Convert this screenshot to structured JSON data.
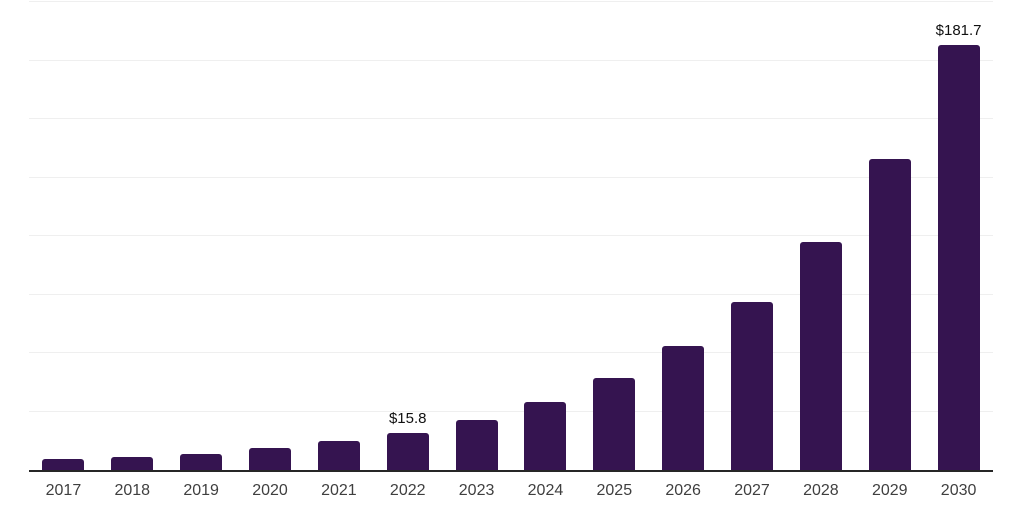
{
  "chart_data": {
    "type": "bar",
    "title": "",
    "xlabel": "",
    "ylabel": "",
    "categories": [
      "2017",
      "2018",
      "2019",
      "2020",
      "2021",
      "2022",
      "2023",
      "2024",
      "2025",
      "2026",
      "2027",
      "2028",
      "2029",
      "2030"
    ],
    "values": [
      4.6,
      5.5,
      7.0,
      9.2,
      12.4,
      15.8,
      21.5,
      29.1,
      39.3,
      52.8,
      71.8,
      97.5,
      133.0,
      181.7
    ],
    "value_labels": {
      "2022": "$15.8",
      "2030": "$181.7"
    },
    "ylim": [
      0,
      200
    ],
    "gridline_step": 25,
    "grid": true,
    "legend": false,
    "y_tick_labels_shown": false,
    "colors": {
      "bar": "#351450",
      "gridline": "#efefef",
      "axis_line": "#262626",
      "tick_label": "#3f3f3f",
      "value_label": "#111111",
      "background": "#ffffff"
    }
  }
}
